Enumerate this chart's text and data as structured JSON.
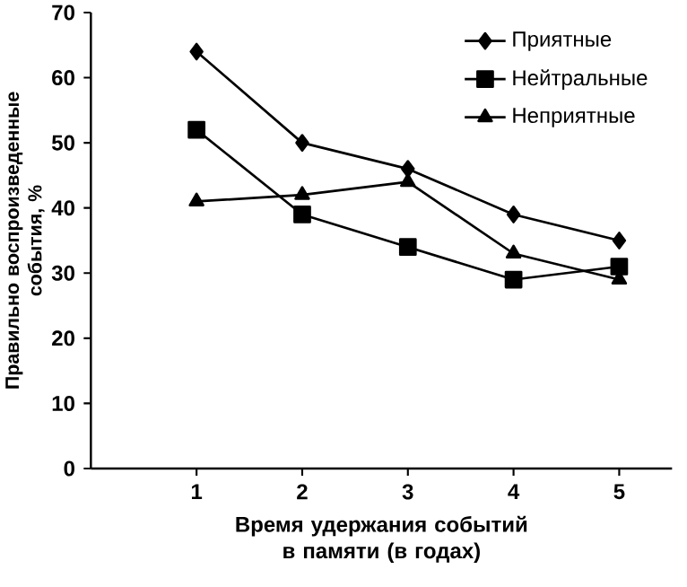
{
  "chart_data": {
    "type": "line",
    "xlabel": "Время удержания событий в памяти (в годах)",
    "ylabel": "Правильно воспроизведенные события, %",
    "x": [
      1,
      2,
      3,
      4,
      5
    ],
    "series": [
      {
        "name": "Приятные",
        "color": "#000000",
        "marker": "diamond",
        "values": [
          64,
          50,
          46,
          39,
          35
        ]
      },
      {
        "name": "Нейтральные",
        "color": "#000000",
        "marker": "square",
        "values": [
          52,
          39,
          34,
          29,
          31
        ]
      },
      {
        "name": "Неприятные",
        "color": "#000000",
        "marker": "triangle",
        "values": [
          41,
          42,
          44,
          33,
          29
        ]
      }
    ],
    "xlim": [
      0,
      5.5
    ],
    "ylim": [
      0,
      70
    ],
    "xticks": [
      1,
      2,
      3,
      4,
      5
    ],
    "yticks": [
      0,
      10,
      20,
      30,
      40,
      50,
      60,
      70
    ],
    "legend": "top right",
    "grid": false,
    "line_style": "solid"
  }
}
